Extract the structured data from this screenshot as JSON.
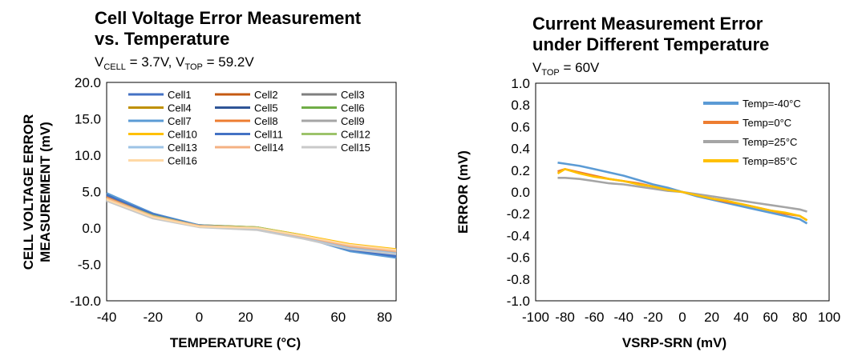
{
  "chart_data": [
    {
      "type": "line",
      "title_line1": "Cell Voltage Error Measurement",
      "title_line2": "vs. Temperature",
      "subtitle": {
        "v1": "V",
        "s1": "CELL",
        "t1": " = 3.7V, V",
        "s2": "TOP",
        "t2": " = 59.2V"
      },
      "xlabel": "TEMPERATURE (°C)",
      "ylabel_line1": "CELL VOLTAGE ERROR",
      "ylabel_line2": "MEASUREMENT (mV)",
      "xlim": [
        -40,
        85
      ],
      "ylim": [
        -10,
        20
      ],
      "x_ticks": [
        -40,
        -20,
        0,
        20,
        40,
        60,
        80
      ],
      "x_tick_labels": [
        "-40",
        "-20",
        "0",
        "20",
        "40",
        "60",
        "80"
      ],
      "y_ticks": [
        20,
        15,
        10,
        5,
        0,
        -5,
        -10
      ],
      "y_tick_labels": [
        "20.0",
        "15.0",
        "10.0",
        "5.0",
        "0.0",
        "-5.0",
        "-10.0"
      ],
      "x": [
        -40,
        -20,
        0,
        25,
        45,
        65,
        85
      ],
      "series": [
        {
          "name": "Cell1",
          "color": "#4472c4",
          "values": [
            4.6,
            1.9,
            0.3,
            0.1,
            -1.2,
            -2.9,
            -3.8
          ]
        },
        {
          "name": "Cell2",
          "color": "#c55a11",
          "values": [
            4.4,
            1.8,
            0.4,
            0.1,
            -1.2,
            -2.6,
            -3.3
          ]
        },
        {
          "name": "Cell3",
          "color": "#7f7f7f",
          "values": [
            4.2,
            1.7,
            0.3,
            0.0,
            -1.3,
            -2.7,
            -3.4
          ]
        },
        {
          "name": "Cell4",
          "color": "#bf9000",
          "values": [
            4.0,
            1.6,
            0.3,
            0.0,
            -1.2,
            -2.5,
            -3.2
          ]
        },
        {
          "name": "Cell5",
          "color": "#2f5597",
          "values": [
            4.7,
            2.0,
            0.3,
            0.0,
            -1.3,
            -3.1,
            -4.0
          ]
        },
        {
          "name": "Cell6",
          "color": "#70ad47",
          "values": [
            4.1,
            1.7,
            0.4,
            0.1,
            -1.0,
            -2.3,
            -3.0
          ]
        },
        {
          "name": "Cell7",
          "color": "#5b9bd5",
          "values": [
            4.8,
            2.0,
            0.4,
            0.0,
            -1.3,
            -3.2,
            -4.1
          ]
        },
        {
          "name": "Cell8",
          "color": "#ed7d31",
          "values": [
            4.3,
            1.8,
            0.3,
            0.0,
            -1.2,
            -2.6,
            -3.3
          ]
        },
        {
          "name": "Cell9",
          "color": "#a5a5a5",
          "values": [
            3.9,
            1.5,
            0.2,
            -0.1,
            -1.3,
            -2.6,
            -3.3
          ]
        },
        {
          "name": "Cell10",
          "color": "#ffc000",
          "values": [
            4.0,
            1.6,
            0.3,
            0.1,
            -1.0,
            -2.2,
            -2.9
          ]
        },
        {
          "name": "Cell11",
          "color": "#4472c4",
          "values": [
            4.5,
            1.9,
            0.3,
            0.0,
            -1.3,
            -3.0,
            -3.9
          ]
        },
        {
          "name": "Cell12",
          "color": "#9dc36a",
          "values": [
            4.1,
            1.7,
            0.3,
            0.1,
            -1.1,
            -2.4,
            -3.1
          ]
        },
        {
          "name": "Cell13",
          "color": "#9dc3e6",
          "values": [
            3.8,
            1.4,
            0.2,
            -0.2,
            -1.4,
            -2.8,
            -3.5
          ]
        },
        {
          "name": "Cell14",
          "color": "#f4b183",
          "values": [
            4.1,
            1.6,
            0.3,
            0.0,
            -1.2,
            -2.5,
            -3.2
          ]
        },
        {
          "name": "Cell15",
          "color": "#c9c9c9",
          "values": [
            3.7,
            1.3,
            0.1,
            -0.3,
            -1.5,
            -2.9,
            -3.6
          ]
        },
        {
          "name": "Cell16",
          "color": "#ffd9a6",
          "values": [
            3.9,
            1.5,
            0.2,
            0.0,
            -1.1,
            -2.3,
            -3.0
          ]
        }
      ],
      "legend": "inside-top"
    },
    {
      "type": "line",
      "title_line1": "Current Measurement Error",
      "title_line2": "under Different Temperature",
      "subtitle": {
        "v1": "V",
        "s1": "TOP",
        "t1": " = 60V"
      },
      "xlabel": "VSRP-SRN (mV)",
      "ylabel": "ERROR (mV)",
      "xlim": [
        -100,
        100
      ],
      "ylim": [
        -1.0,
        1.0
      ],
      "x_ticks": [
        -100,
        -80,
        -60,
        -40,
        -20,
        0,
        20,
        40,
        60,
        80,
        100
      ],
      "x_tick_labels": [
        "-100",
        "-80",
        "-60",
        "-40",
        "-20",
        "0",
        "20",
        "40",
        "60",
        "80",
        "100"
      ],
      "y_ticks": [
        1.0,
        0.8,
        0.6,
        0.4,
        0.2,
        0.0,
        -0.2,
        -0.4,
        -0.6,
        -0.8,
        -1.0
      ],
      "y_tick_labels": [
        "1.0",
        "0.8",
        "0.6",
        "0.4",
        "0.2",
        "0.0",
        "-0.2",
        "-0.4",
        "-0.6",
        "-0.8",
        "-1.0"
      ],
      "series": [
        {
          "name": "Temp=-40°C",
          "color": "#5b9bd5",
          "x": [
            -85,
            -80,
            -70,
            -60,
            -50,
            -40,
            -30,
            -20,
            -10,
            0,
            10,
            20,
            30,
            40,
            50,
            60,
            70,
            80,
            85
          ],
          "values": [
            0.27,
            0.26,
            0.24,
            0.21,
            0.18,
            0.15,
            0.11,
            0.07,
            0.04,
            0.0,
            -0.04,
            -0.07,
            -0.1,
            -0.13,
            -0.16,
            -0.19,
            -0.22,
            -0.25,
            -0.29
          ]
        },
        {
          "name": "Temp=0°C",
          "color": "#ed7d31",
          "x": [
            -85,
            -80,
            -70,
            -60,
            -50,
            -40,
            -30,
            -20,
            -10,
            0,
            10,
            20,
            30,
            40,
            50,
            60,
            70,
            80,
            85
          ],
          "values": [
            0.19,
            0.21,
            0.18,
            0.15,
            0.12,
            0.1,
            0.08,
            0.05,
            0.02,
            0.0,
            -0.03,
            -0.06,
            -0.09,
            -0.11,
            -0.14,
            -0.17,
            -0.2,
            -0.22,
            -0.26
          ]
        },
        {
          "name": "Temp=25°C",
          "color": "#a5a5a5",
          "x": [
            -85,
            -80,
            -70,
            -60,
            -50,
            -40,
            -30,
            -20,
            -10,
            0,
            10,
            20,
            30,
            40,
            50,
            60,
            70,
            80,
            85
          ],
          "values": [
            0.13,
            0.13,
            0.12,
            0.1,
            0.08,
            0.07,
            0.05,
            0.03,
            0.01,
            0.0,
            -0.02,
            -0.04,
            -0.06,
            -0.08,
            -0.1,
            -0.12,
            -0.14,
            -0.16,
            -0.18
          ]
        },
        {
          "name": "Temp=85°C",
          "color": "#ffc000",
          "x": [
            -85,
            -80,
            -70,
            -60,
            -50,
            -40,
            -30,
            -20,
            -10,
            0,
            10,
            20,
            30,
            40,
            50,
            60,
            70,
            80,
            85
          ],
          "values": [
            0.17,
            0.21,
            0.17,
            0.14,
            0.12,
            0.1,
            0.07,
            0.05,
            0.02,
            0.0,
            -0.03,
            -0.06,
            -0.08,
            -0.11,
            -0.14,
            -0.17,
            -0.19,
            -0.22,
            -0.26
          ]
        }
      ],
      "legend": "top-right"
    }
  ]
}
